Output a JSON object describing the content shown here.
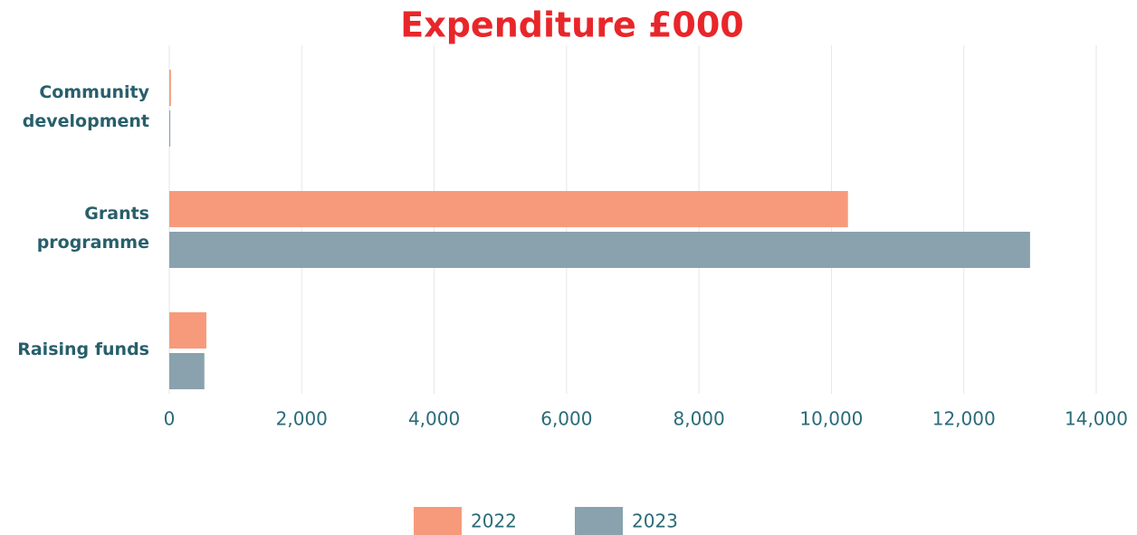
{
  "chart_data": {
    "type": "hbar",
    "title": "Expenditure £000",
    "categories": [
      "Community development",
      "Grants programme",
      "Raising funds"
    ],
    "series": [
      {
        "name": "2022",
        "color": "#f79a7c",
        "values": [
          25,
          10250,
          560
        ]
      },
      {
        "name": "2023",
        "color": "#89a2ad",
        "values": [
          15,
          13000,
          530
        ]
      }
    ],
    "xlim": [
      0,
      14000
    ],
    "xticks": [
      0,
      {
        "value": 2000,
        "label": "2,000"
      },
      {
        "value": 4000,
        "label": "4,000"
      },
      {
        "value": 6000,
        "label": "6,000"
      },
      {
        "value": 8000,
        "label": "8,000"
      },
      {
        "value": 10000,
        "label": "10,000"
      },
      {
        "value": 12000,
        "label": "12,000"
      },
      {
        "value": 14000,
        "label": "14,000"
      }
    ],
    "grid": true,
    "legend": "bottom"
  }
}
